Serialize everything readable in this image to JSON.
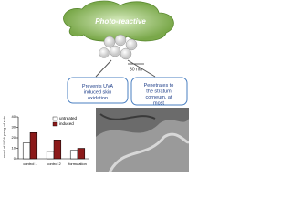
{
  "banner": "Photo-reactive",
  "scale_label": "30 nm",
  "boxes": [
    "Prevents UVA induced skin oxidation",
    "Penetrates to the stratum corneum, at most"
  ],
  "chart_data": {
    "type": "bar",
    "y_label": "nmol of MDA per g of skin",
    "categories": [
      "control 1",
      "control 2",
      "formulation"
    ],
    "series": [
      {
        "name": "untreated",
        "color": "#ffffff",
        "values": [
          15,
          7,
          8
        ]
      },
      {
        "name": "induced",
        "color": "#8b1a1a",
        "values": [
          25,
          18,
          10
        ]
      }
    ],
    "ylim": [
      0,
      40
    ],
    "yticks": [
      0,
      10,
      20,
      30,
      40
    ]
  }
}
